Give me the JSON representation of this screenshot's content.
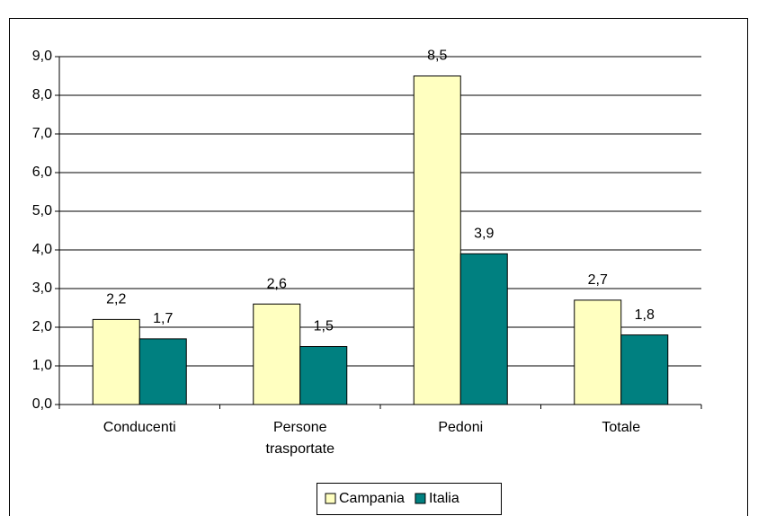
{
  "chart_data": {
    "type": "bar",
    "categories": [
      "Conducenti",
      "Persone trasportate",
      "Pedoni",
      "Totale"
    ],
    "series": [
      {
        "name": "Campania",
        "color": "#ffffc0",
        "values": [
          2.2,
          2.6,
          8.5,
          2.7
        ],
        "value_labels": [
          "2,2",
          "2,6",
          "8,5",
          "2,7"
        ]
      },
      {
        "name": "Italia",
        "color": "#008080",
        "values": [
          1.7,
          1.5,
          3.9,
          1.8
        ],
        "value_labels": [
          "1,7",
          "1,5",
          "3,9",
          "1,8"
        ]
      }
    ],
    "ylim": [
      0,
      9
    ],
    "yticks": [
      {
        "value": 0,
        "label": "0,0"
      },
      {
        "value": 1,
        "label": "1,0"
      },
      {
        "value": 2,
        "label": "2,0"
      },
      {
        "value": 3,
        "label": "3,0"
      },
      {
        "value": 4,
        "label": "4,0"
      },
      {
        "value": 5,
        "label": "5,0"
      },
      {
        "value": 6,
        "label": "6,0"
      },
      {
        "value": 7,
        "label": "7,0"
      },
      {
        "value": 8,
        "label": "8,0"
      },
      {
        "value": 9,
        "label": "9,0"
      }
    ],
    "grid": true,
    "legend": "bottom"
  }
}
